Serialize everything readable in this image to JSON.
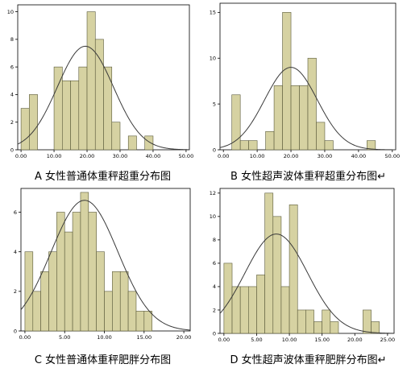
{
  "chart_data": [
    {
      "type": "bar",
      "caption": "A 女性普通体重秤超重分布图",
      "bins": [
        {
          "x0": 0,
          "x1": 2.5,
          "count": 3
        },
        {
          "x0": 2.5,
          "x1": 5,
          "count": 4
        },
        {
          "x0": 5,
          "x1": 7.5,
          "count": 0
        },
        {
          "x0": 7.5,
          "x1": 10,
          "count": 0
        },
        {
          "x0": 10,
          "x1": 12.5,
          "count": 6
        },
        {
          "x0": 12.5,
          "x1": 15,
          "count": 5
        },
        {
          "x0": 15,
          "x1": 17.5,
          "count": 5
        },
        {
          "x0": 17.5,
          "x1": 20,
          "count": 6
        },
        {
          "x0": 20,
          "x1": 22.5,
          "count": 10
        },
        {
          "x0": 22.5,
          "x1": 25,
          "count": 8
        },
        {
          "x0": 25,
          "x1": 27.5,
          "count": 6
        },
        {
          "x0": 27.5,
          "x1": 30,
          "count": 2
        },
        {
          "x0": 30,
          "x1": 32.5,
          "count": 0
        },
        {
          "x0": 32.5,
          "x1": 35,
          "count": 1
        },
        {
          "x0": 35,
          "x1": 37.5,
          "count": 0
        },
        {
          "x0": 37.5,
          "x1": 40,
          "count": 1
        }
      ],
      "normal_curve": {
        "peak": 7.5,
        "mean": 19.5,
        "sd": 8.5
      },
      "xlim": [
        -1,
        51
      ],
      "ylim": [
        0,
        10.5
      ],
      "xticks": [
        0,
        10,
        20,
        30,
        40,
        50
      ],
      "xtick_labels": [
        "0.00",
        "10.00",
        "20.00",
        "30.00",
        "40.00",
        "50.00"
      ],
      "yticks": [
        0,
        2,
        4,
        6,
        8,
        10
      ],
      "ytick_labels": [
        "0",
        "2",
        "4",
        "6",
        "8",
        "10"
      ]
    },
    {
      "type": "bar",
      "caption": "B 女性超声波体重秤超重分布图↵",
      "bins": [
        {
          "x0": 0,
          "x1": 2.5,
          "count": 0
        },
        {
          "x0": 2.5,
          "x1": 5,
          "count": 6
        },
        {
          "x0": 5,
          "x1": 7.5,
          "count": 1
        },
        {
          "x0": 7.5,
          "x1": 10,
          "count": 1
        },
        {
          "x0": 10,
          "x1": 12.5,
          "count": 0
        },
        {
          "x0": 12.5,
          "x1": 15,
          "count": 2
        },
        {
          "x0": 15,
          "x1": 17.5,
          "count": 7
        },
        {
          "x0": 17.5,
          "x1": 20,
          "count": 15
        },
        {
          "x0": 20,
          "x1": 22.5,
          "count": 7
        },
        {
          "x0": 22.5,
          "x1": 25,
          "count": 7
        },
        {
          "x0": 25,
          "x1": 27.5,
          "count": 10
        },
        {
          "x0": 27.5,
          "x1": 30,
          "count": 3
        },
        {
          "x0": 30,
          "x1": 32.5,
          "count": 1
        },
        {
          "x0": 32.5,
          "x1": 35,
          "count": 0
        },
        {
          "x0": 35,
          "x1": 37.5,
          "count": 0
        },
        {
          "x0": 37.5,
          "x1": 40,
          "count": 0
        },
        {
          "x0": 40,
          "x1": 42.5,
          "count": 0
        },
        {
          "x0": 42.5,
          "x1": 45,
          "count": 1
        }
      ],
      "normal_curve": {
        "peak": 9,
        "mean": 20,
        "sd": 7.8
      },
      "xlim": [
        -1,
        51
      ],
      "ylim": [
        0,
        16
      ],
      "xticks": [
        0,
        10,
        20,
        30,
        40,
        50
      ],
      "xtick_labels": [
        "0.00",
        "10.00",
        "20.00",
        "30.00",
        "40.00",
        "50.00"
      ],
      "yticks": [
        0,
        5,
        10,
        15
      ],
      "ytick_labels": [
        "0",
        "5",
        "10",
        "15"
      ]
    },
    {
      "type": "bar",
      "caption": "C 女性普通体重秤肥胖分布图",
      "bins": [
        {
          "x0": 0,
          "x1": 1,
          "count": 4
        },
        {
          "x0": 1,
          "x1": 2,
          "count": 2
        },
        {
          "x0": 2,
          "x1": 3,
          "count": 3
        },
        {
          "x0": 3,
          "x1": 4,
          "count": 4
        },
        {
          "x0": 4,
          "x1": 5,
          "count": 6
        },
        {
          "x0": 5,
          "x1": 6,
          "count": 5
        },
        {
          "x0": 6,
          "x1": 7,
          "count": 6
        },
        {
          "x0": 7,
          "x1": 8,
          "count": 7
        },
        {
          "x0": 8,
          "x1": 9,
          "count": 6
        },
        {
          "x0": 9,
          "x1": 10,
          "count": 4
        },
        {
          "x0": 10,
          "x1": 11,
          "count": 2
        },
        {
          "x0": 11,
          "x1": 12,
          "count": 3
        },
        {
          "x0": 12,
          "x1": 13,
          "count": 3
        },
        {
          "x0": 13,
          "x1": 14,
          "count": 2
        },
        {
          "x0": 14,
          "x1": 15,
          "count": 1
        },
        {
          "x0": 15,
          "x1": 16,
          "count": 1
        }
      ],
      "normal_curve": {
        "peak": 6.6,
        "mean": 7.5,
        "sd": 4.2
      },
      "xlim": [
        -0.5,
        20.8
      ],
      "ylim": [
        0,
        7.2
      ],
      "xticks": [
        0,
        5,
        10,
        15,
        20
      ],
      "xtick_labels": [
        "0.00",
        "5.00",
        "10.00",
        "15.00",
        "20.00"
      ],
      "yticks": [
        0,
        2,
        4,
        6
      ],
      "ytick_labels": [
        "0",
        "2",
        "4",
        "6"
      ]
    },
    {
      "type": "bar",
      "caption": "D 女性超声波体重秤肥胖分布图↵",
      "bins": [
        {
          "x0": 0,
          "x1": 1.25,
          "count": 6
        },
        {
          "x0": 1.25,
          "x1": 2.5,
          "count": 4
        },
        {
          "x0": 2.5,
          "x1": 3.75,
          "count": 4
        },
        {
          "x0": 3.75,
          "x1": 5,
          "count": 4
        },
        {
          "x0": 5,
          "x1": 6.25,
          "count": 5
        },
        {
          "x0": 6.25,
          "x1": 7.5,
          "count": 12
        },
        {
          "x0": 7.5,
          "x1": 8.75,
          "count": 10
        },
        {
          "x0": 8.75,
          "x1": 10,
          "count": 4
        },
        {
          "x0": 10,
          "x1": 11.25,
          "count": 11
        },
        {
          "x0": 11.25,
          "x1": 12.5,
          "count": 2
        },
        {
          "x0": 12.5,
          "x1": 13.75,
          "count": 2
        },
        {
          "x0": 13.75,
          "x1": 15,
          "count": 1
        },
        {
          "x0": 15,
          "x1": 16.25,
          "count": 2
        },
        {
          "x0": 16.25,
          "x1": 17.5,
          "count": 1
        },
        {
          "x0": 17.5,
          "x1": 18.75,
          "count": 0
        },
        {
          "x0": 18.75,
          "x1": 20,
          "count": 0
        },
        {
          "x0": 20,
          "x1": 21.25,
          "count": 0
        },
        {
          "x0": 21.25,
          "x1": 22.5,
          "count": 2
        },
        {
          "x0": 22.5,
          "x1": 23.75,
          "count": 1
        }
      ],
      "normal_curve": {
        "peak": 8.5,
        "mean": 8,
        "sd": 4.8
      },
      "xlim": [
        -0.6,
        26
      ],
      "ylim": [
        0,
        12.4
      ],
      "xticks": [
        0,
        5,
        10,
        15,
        20,
        25
      ],
      "xtick_labels": [
        "0.00",
        "5.00",
        "10.00",
        "15.00",
        "20.00",
        "25.00"
      ],
      "yticks": [
        0,
        2,
        4,
        6,
        8,
        10,
        12
      ],
      "ytick_labels": [
        "0",
        "2",
        "4",
        "6",
        "8",
        "10",
        "12"
      ]
    }
  ],
  "colors": {
    "bar_fill": "#d6d2a2",
    "bar_stroke": "#5a5a3a",
    "curve": "#3a3a3a",
    "axis": "#000000"
  }
}
